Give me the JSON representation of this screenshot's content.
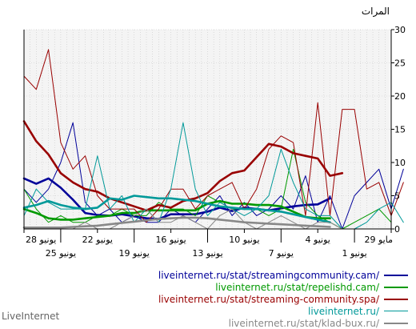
{
  "footer": {
    "brand": "LiveInternet"
  },
  "chart_data": {
    "type": "line",
    "ylabel": "المرات",
    "ylim": [
      0,
      30
    ],
    "yticks": [
      0,
      5,
      10,
      15,
      20,
      25,
      30
    ],
    "grid": true,
    "legend_position": "bottom-right",
    "x_days": 30,
    "x_labels": [
      {
        "day": 0,
        "text": "28 يونيو",
        "row": 1
      },
      {
        "day": 3,
        "text": "25 يونيو",
        "row": 2
      },
      {
        "day": 6,
        "text": "22 يونيو",
        "row": 1
      },
      {
        "day": 9,
        "text": "19 يونيو",
        "row": 2
      },
      {
        "day": 12,
        "text": "16 يونيو",
        "row": 1
      },
      {
        "day": 15,
        "text": "13 يونيو",
        "row": 2
      },
      {
        "day": 18,
        "text": "10 يونيو",
        "row": 1
      },
      {
        "day": 21,
        "text": "7 يونيو",
        "row": 2
      },
      {
        "day": 24,
        "text": "4 يونيو",
        "row": 1
      },
      {
        "day": 27,
        "text": "1 يونيو",
        "row": 2
      },
      {
        "day": 30,
        "text": "29 مايو",
        "row": 1
      }
    ],
    "series": [
      {
        "name": "liveinternet.ru/stat/streamingcommunity.cam/",
        "color": "#000099",
        "style": "avg",
        "start": 0,
        "values": [
          7.6,
          6.8,
          7.6,
          6.2,
          4.4,
          2.4,
          2.1,
          2.0,
          2.2,
          1.9,
          1.6,
          1.5,
          2.2,
          2.2,
          2.2,
          2.6,
          3.2,
          2.7,
          3.2,
          3.0,
          2.8,
          3.1,
          3.4,
          3.6,
          3.7,
          4.6
        ]
      },
      {
        "name": "liveinternet.ru/stat/streamingcommunity.cam/",
        "color": "#000099",
        "style": "daily",
        "start": 0,
        "values": [
          6,
          4,
          6,
          10,
          16,
          4,
          2,
          3,
          1,
          2,
          1,
          1,
          3,
          2,
          1,
          3,
          5,
          2,
          4,
          2,
          3,
          5,
          3,
          8,
          1,
          5,
          0,
          5,
          7,
          9,
          3,
          9
        ]
      },
      {
        "name": "liveinternet.ru/stat/repelishd.cam/",
        "color": "#009900",
        "style": "avg",
        "start": 0,
        "values": [
          3.0,
          2.4,
          1.6,
          1.4,
          1.4,
          1.6,
          1.8,
          2.0,
          2.4,
          2.4,
          2.8,
          2.8,
          2.8,
          2.8,
          2.8,
          3.8,
          4.2,
          3.8,
          3.8,
          3.6,
          3.6,
          3.4,
          2.6,
          1.8,
          1.6,
          1.6
        ]
      },
      {
        "name": "liveinternet.ru/stat/repelishd.cam/",
        "color": "#009900",
        "style": "daily",
        "start": 0,
        "values": [
          6,
          3,
          1,
          2,
          1,
          1,
          2,
          2,
          3,
          2,
          2,
          4,
          3,
          3,
          2,
          5,
          4,
          3,
          3,
          3,
          2,
          3,
          12,
          4,
          2,
          1,
          0,
          1,
          2,
          3,
          1
        ]
      },
      {
        "name": "liveinternet.ru/stat/streaming-community.spa/",
        "color": "#990000",
        "style": "avg",
        "start": 0,
        "values": [
          16.2,
          13.2,
          11.2,
          8.4,
          7.0,
          6.0,
          5.6,
          4.6,
          4.0,
          3.4,
          2.8,
          3.6,
          3.2,
          4.2,
          4.6,
          5.4,
          7.2,
          8.4,
          8.8,
          10.8,
          12.8,
          12.4,
          11.4,
          11.0,
          10.6,
          8.0,
          8.4
        ]
      },
      {
        "name": "liveinternet.ru/stat/streaming-community.spa/",
        "color": "#990000",
        "style": "daily",
        "start": 0,
        "values": [
          23,
          21,
          27,
          13,
          9,
          11,
          5,
          3,
          3,
          3,
          1,
          3,
          6,
          6,
          3,
          5,
          6,
          7,
          3,
          6,
          12,
          14,
          13,
          2,
          19,
          2,
          18,
          18,
          6,
          7,
          2,
          7
        ]
      },
      {
        "name": "liveinternet.ru/",
        "color": "#009999",
        "style": "daily",
        "start": 0,
        "values": [
          2,
          6,
          4,
          3,
          3,
          3,
          11,
          3,
          5,
          1,
          3,
          1,
          6,
          16,
          6,
          2,
          4,
          3,
          2,
          3,
          5,
          12,
          7,
          3,
          2,
          2,
          0,
          0,
          1,
          3,
          4,
          1
        ]
      },
      {
        "name": "liveinternet.ru/",
        "color": "#009999",
        "style": "avg",
        "start": 0,
        "values": [
          3.2,
          3.6,
          4.2,
          3.6,
          3.2,
          3.0,
          3.2,
          4.6,
          4.4,
          5.0,
          4.8,
          4.6,
          4.6,
          4.4,
          4.2,
          3.8,
          3.4,
          3.2,
          3.0,
          3.0,
          2.8,
          2.6,
          2.2,
          1.8,
          1.4,
          1.0
        ]
      },
      {
        "name": "liveinternet.ru/stat/klad-bux.ru/",
        "color": "#888888",
        "style": "avg",
        "start": 0,
        "values": [
          0.2,
          0.2,
          0.2,
          0.2,
          0.3,
          0.4,
          0.5,
          0.7,
          0.9,
          1.1,
          1.3,
          1.5,
          1.6,
          1.7,
          1.7,
          1.6,
          1.4,
          1.2,
          1.0,
          0.9,
          0.8,
          0.7,
          0.6,
          0.5,
          0.4,
          0.3
        ]
      },
      {
        "name": "liveinternet.ru/stat/klad-bux.ru/",
        "color": "#888888",
        "style": "daily",
        "start": 0,
        "values": [
          0,
          0,
          0,
          0,
          0,
          1,
          0,
          0,
          1,
          2,
          3,
          1,
          1,
          2,
          1,
          0,
          2,
          3,
          1,
          0,
          1,
          2,
          1,
          0,
          1,
          1,
          0,
          0,
          0,
          0,
          0
        ]
      }
    ],
    "legend": [
      {
        "label": "liveinternet.ru/stat/streamingcommunity.cam/",
        "color": "#000099",
        "swatch": "thick"
      },
      {
        "label": "liveinternet.ru/stat/repelishd.cam/",
        "color": "#009900",
        "swatch": "thick"
      },
      {
        "label": "liveinternet.ru/stat/streaming-community.spa/",
        "color": "#990000",
        "swatch": "thick"
      },
      {
        "label": "liveinternet.ru/",
        "color": "#009999",
        "swatch": "thin"
      },
      {
        "label": "liveinternet.ru/stat/klad-bux.ru/",
        "color": "#888888",
        "swatch": "thick"
      }
    ]
  }
}
